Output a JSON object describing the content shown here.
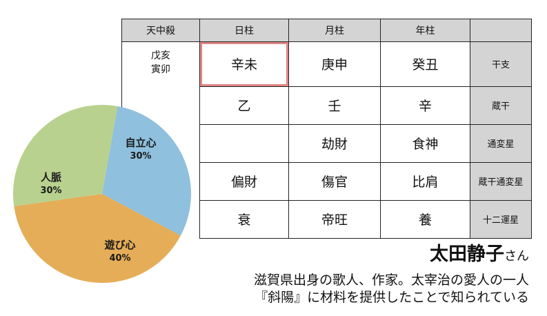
{
  "table": {
    "headers": [
      "天中殺",
      "日柱",
      "月柱",
      "年柱",
      ""
    ],
    "tenchusatsu": [
      "戊亥",
      "寅卯"
    ],
    "rows": [
      {
        "label": "干支",
        "cells": [
          "辛未",
          "庚申",
          "癸丑"
        ]
      },
      {
        "label": "蔵干",
        "cells": [
          "乙",
          "壬",
          "辛"
        ]
      },
      {
        "label": "通変星",
        "cells": [
          "",
          "劫財",
          "食神"
        ]
      },
      {
        "label": "蔵干通変星",
        "cells": [
          "偏財",
          "傷官",
          "比肩"
        ]
      },
      {
        "label": "十二運星",
        "cells": [
          "衰",
          "帝旺",
          "養"
        ]
      }
    ],
    "highlight_color": "#e08585"
  },
  "chart_data": {
    "type": "pie",
    "slices": [
      {
        "label": "自立心",
        "value": 30,
        "value_label": "30%",
        "color": "#8fc0dd"
      },
      {
        "label": "遊び心",
        "value": 40,
        "value_label": "40%",
        "color": "#e5ad57"
      },
      {
        "label": "人脈",
        "value": 30,
        "value_label": "30%",
        "color": "#b9d18e"
      }
    ]
  },
  "person": {
    "name": "太田静子",
    "suffix": "さん",
    "description": [
      "滋賀県出身の歌人、作家。太宰治の愛人の一人",
      "『斜陽』に材料を提供したことで知られている"
    ]
  }
}
